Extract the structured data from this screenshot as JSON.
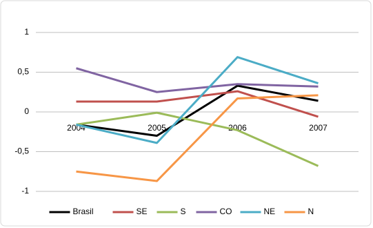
{
  "chart_data": {
    "type": "line",
    "categories": [
      "2004",
      "2005",
      "2006",
      "2007"
    ],
    "series": [
      {
        "name": "Brasil",
        "color": "#000000",
        "values": [
          -0.16,
          -0.3,
          0.33,
          0.14
        ]
      },
      {
        "name": "SE",
        "color": "#c0504d",
        "values": [
          0.13,
          0.13,
          0.26,
          -0.06
        ]
      },
      {
        "name": "S",
        "color": "#9bbb59",
        "values": [
          -0.16,
          -0.01,
          -0.23,
          -0.68
        ]
      },
      {
        "name": "CO",
        "color": "#8064a2",
        "values": [
          0.55,
          0.25,
          0.35,
          0.32
        ]
      },
      {
        "name": "NE",
        "color": "#4bacc6",
        "values": [
          -0.16,
          -0.39,
          0.69,
          0.36
        ]
      },
      {
        "name": "N",
        "color": "#f79646",
        "values": [
          -0.75,
          -0.87,
          0.17,
          0.21
        ]
      }
    ],
    "ylim": [
      -1,
      1
    ],
    "yticks": [
      -1,
      {
        "value": -0.5,
        "label": "-0,5"
      },
      0,
      {
        "value": 0.5,
        "label": "0,5"
      },
      1
    ],
    "grid": true,
    "legend": "bottom"
  }
}
